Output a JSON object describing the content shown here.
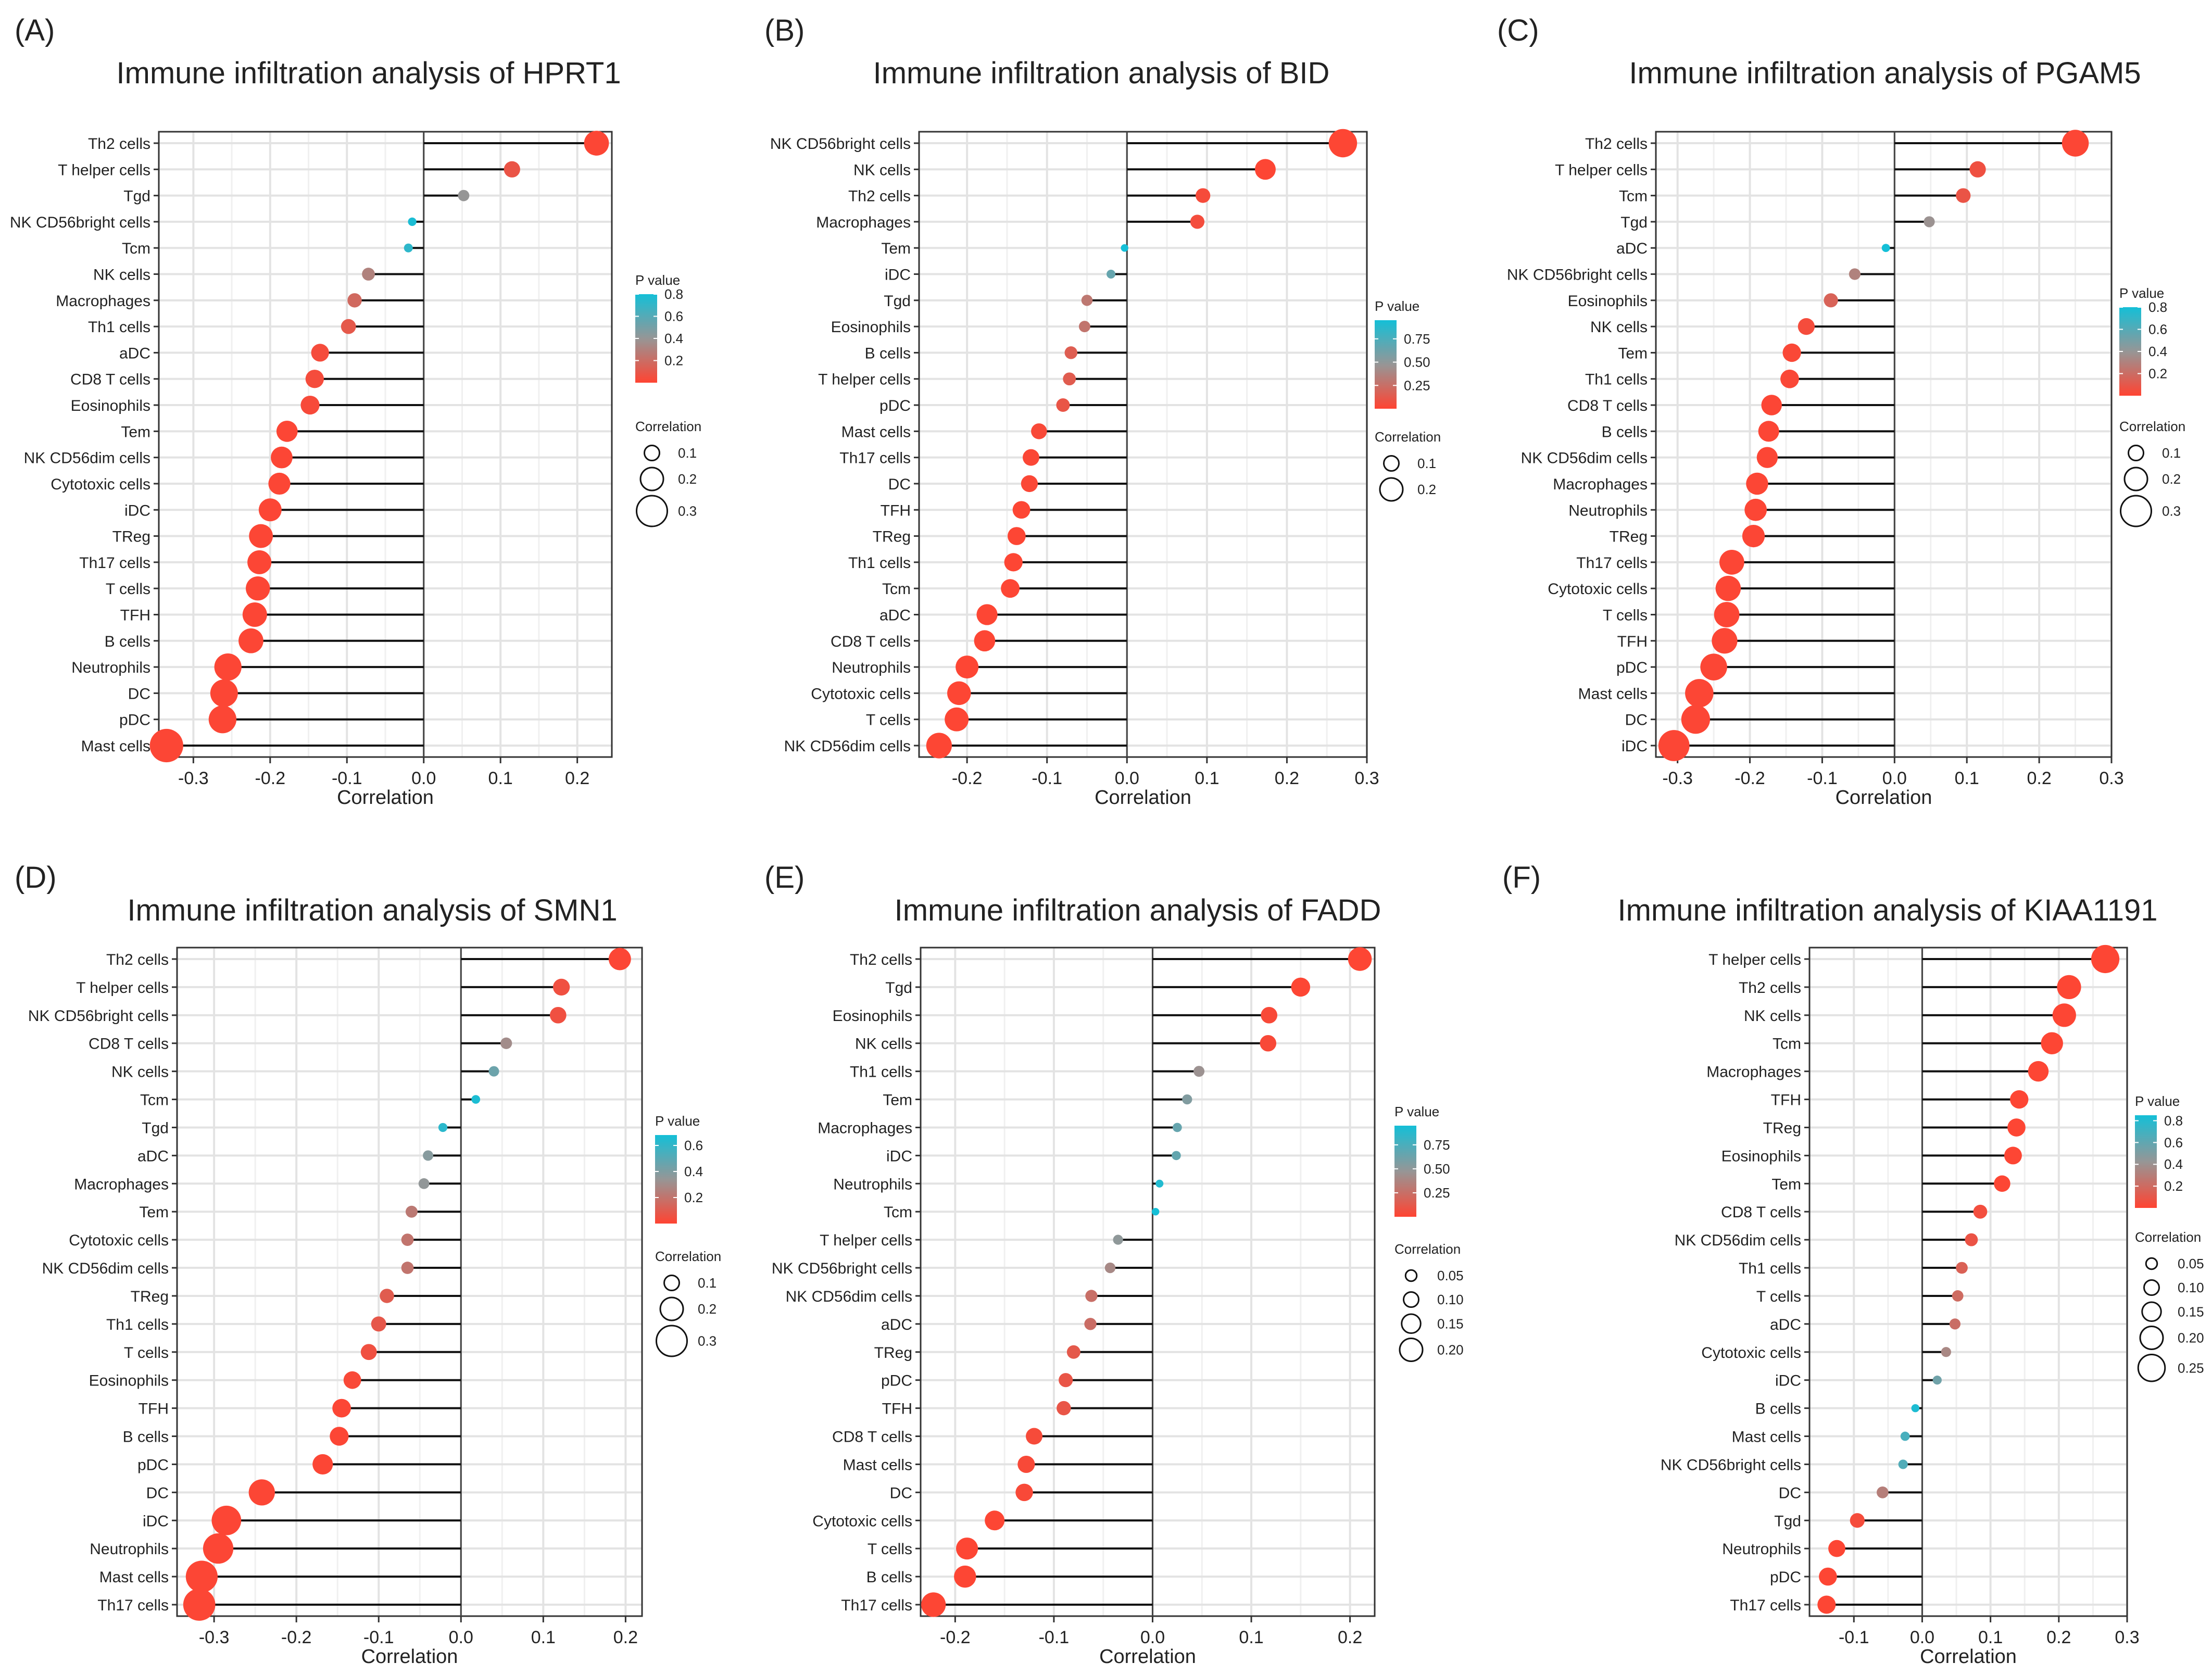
{
  "figure": {
    "description": "Six lollipop charts of immune infiltration correlation"
  },
  "chart_data": [
    {
      "type": "lollipop",
      "panel_label": "(A)",
      "title": "Immune infiltration analysis of HPRT1",
      "xlabel": "Correlation",
      "xlim": [
        -0.345,
        0.245
      ],
      "xticks": [
        -0.3,
        -0.2,
        -0.1,
        0.0,
        0.1,
        0.2
      ],
      "xtick_labels": [
        "-0.3",
        "-0.2",
        "-0.1",
        "0.0",
        "0.1",
        "0.2"
      ],
      "categories": [
        "Th2 cells",
        "T helper cells",
        "Tgd",
        "NK CD56bright cells",
        "Tcm",
        "NK cells",
        "Macrophages",
        "Th1 cells",
        "aDC",
        "CD8 T cells",
        "Eosinophils",
        "Tem",
        "NK CD56dim cells",
        "Cytotoxic cells",
        "iDC",
        "TReg",
        "Th17 cells",
        "T cells",
        "TFH",
        "B cells",
        "Neutrophils",
        "DC",
        "pDC",
        "Mast cells"
      ],
      "correlation": [
        0.225,
        0.115,
        0.052,
        -0.015,
        -0.02,
        -0.072,
        -0.09,
        -0.098,
        -0.135,
        -0.142,
        -0.148,
        -0.178,
        -0.185,
        -0.188,
        -0.2,
        -0.212,
        -0.214,
        -0.216,
        -0.22,
        -0.225,
        -0.255,
        -0.26,
        -0.262,
        -0.335
      ],
      "p_value": [
        0.01,
        0.08,
        0.4,
        0.78,
        0.72,
        0.3,
        0.18,
        0.1,
        0.04,
        0.04,
        0.03,
        0.01,
        0.01,
        0.01,
        0.01,
        0.01,
        0.01,
        0.01,
        0.01,
        0.01,
        0.01,
        0.01,
        0.01,
        0.01
      ],
      "p_legend": {
        "title": "P value",
        "max": 0.8,
        "ticks": [
          0.8,
          0.6,
          0.4,
          0.2
        ],
        "tick_labels": [
          "0.8",
          "0.6",
          "0.4",
          "0.2"
        ]
      },
      "size_legend": {
        "title": "Correlation",
        "values": [
          0.1,
          0.2,
          0.3
        ],
        "labels": [
          "0.1",
          "0.2",
          "0.3"
        ]
      }
    },
    {
      "type": "lollipop",
      "panel_label": "(B)",
      "title": "Immune infiltration analysis of BID",
      "xlabel": "Correlation",
      "xlim": [
        -0.26,
        0.3
      ],
      "xticks": [
        -0.2,
        -0.1,
        0.0,
        0.1,
        0.2,
        0.3
      ],
      "xtick_labels": [
        "-0.2",
        "-0.1",
        "0.0",
        "0.1",
        "0.2",
        "0.3"
      ],
      "categories": [
        "NK CD56bright cells",
        "NK cells",
        "Th2 cells",
        "Macrophages",
        "Tem",
        "iDC",
        "Tgd",
        "Eosinophils",
        "B cells",
        "T helper cells",
        "pDC",
        "Mast cells",
        "Th17 cells",
        "DC",
        "TFH",
        "TReg",
        "Th1 cells",
        "Tcm",
        "aDC",
        "CD8 T cells",
        "Neutrophils",
        "Cytotoxic cells",
        "T cells",
        "NK CD56dim cells"
      ],
      "correlation": [
        0.27,
        0.173,
        0.095,
        0.088,
        -0.003,
        -0.02,
        -0.05,
        -0.053,
        -0.07,
        -0.072,
        -0.08,
        -0.11,
        -0.12,
        -0.122,
        -0.132,
        -0.138,
        -0.142,
        -0.146,
        -0.175,
        -0.178,
        -0.2,
        -0.21,
        -0.213,
        -0.235
      ],
      "p_value": [
        0.01,
        0.01,
        0.04,
        0.05,
        0.95,
        0.65,
        0.3,
        0.28,
        0.15,
        0.14,
        0.1,
        0.03,
        0.02,
        0.02,
        0.01,
        0.01,
        0.01,
        0.01,
        0.01,
        0.01,
        0.01,
        0.01,
        0.01,
        0.01
      ],
      "p_legend": {
        "title": "P value",
        "max": 0.95,
        "ticks": [
          0.75,
          0.5,
          0.25
        ],
        "tick_labels": [
          "0.75",
          "0.50",
          "0.25"
        ]
      },
      "size_legend": {
        "title": "Correlation",
        "values": [
          0.1,
          0.2
        ],
        "labels": [
          "0.1",
          "0.2"
        ]
      }
    },
    {
      "type": "lollipop",
      "panel_label": "(C)",
      "title": "Immune infiltration analysis of PGAM5",
      "xlabel": "Correlation",
      "xlim": [
        -0.33,
        0.3
      ],
      "xticks": [
        -0.3,
        -0.2,
        -0.1,
        0.0,
        0.1,
        0.2,
        0.3
      ],
      "xtick_labels": [
        "-0.3",
        "-0.2",
        "-0.1",
        "0.0",
        "0.1",
        "0.2",
        "0.3"
      ],
      "categories": [
        "Th2 cells",
        "T helper cells",
        "Tcm",
        "Tgd",
        "aDC",
        "NK CD56bright cells",
        "Eosinophils",
        "NK cells",
        "Tem",
        "Th1 cells",
        "CD8 T cells",
        "B cells",
        "NK CD56dim cells",
        "Macrophages",
        "Neutrophils",
        "TReg",
        "Th17 cells",
        "Cytotoxic cells",
        "T cells",
        "TFH",
        "pDC",
        "Mast cells",
        "DC",
        "iDC"
      ],
      "correlation": [
        0.25,
        0.115,
        0.095,
        0.048,
        -0.012,
        -0.055,
        -0.088,
        -0.122,
        -0.142,
        -0.145,
        -0.17,
        -0.174,
        -0.176,
        -0.19,
        -0.192,
        -0.195,
        -0.225,
        -0.23,
        -0.232,
        -0.235,
        -0.25,
        -0.27,
        -0.275,
        -0.305
      ],
      "p_value": [
        0.01,
        0.06,
        0.08,
        0.38,
        0.82,
        0.3,
        0.15,
        0.04,
        0.02,
        0.02,
        0.01,
        0.01,
        0.01,
        0.01,
        0.01,
        0.01,
        0.01,
        0.01,
        0.01,
        0.01,
        0.01,
        0.01,
        0.01,
        0.01
      ],
      "p_legend": {
        "title": "P value",
        "max": 0.8,
        "ticks": [
          0.8,
          0.6,
          0.4,
          0.2
        ],
        "tick_labels": [
          "0.8",
          "0.6",
          "0.4",
          "0.2"
        ]
      },
      "size_legend": {
        "title": "Correlation",
        "values": [
          0.1,
          0.2,
          0.3
        ],
        "labels": [
          "0.1",
          "0.2",
          "0.3"
        ]
      }
    },
    {
      "type": "lollipop",
      "panel_label": "(D)",
      "title": "Immune infiltration analysis of SMN1",
      "xlabel": "Correlation",
      "xlim": [
        -0.345,
        0.22
      ],
      "xticks": [
        -0.3,
        -0.2,
        -0.1,
        0.0,
        0.1,
        0.2
      ],
      "xtick_labels": [
        "-0.3",
        "-0.2",
        "-0.1",
        "0.0",
        "0.1",
        "0.2"
      ],
      "categories": [
        "Th2 cells",
        "T helper cells",
        "NK CD56bright cells",
        "CD8 T cells",
        "NK cells",
        "Tcm",
        "Tgd",
        "aDC",
        "Macrophages",
        "Tem",
        "Cytotoxic cells",
        "NK CD56dim cells",
        "TReg",
        "Th1 cells",
        "T cells",
        "Eosinophils",
        "TFH",
        "B cells",
        "pDC",
        "DC",
        "iDC",
        "Neutrophils",
        "Mast cells",
        "Th17 cells"
      ],
      "correlation": [
        0.193,
        0.122,
        0.118,
        0.055,
        0.04,
        0.018,
        -0.022,
        -0.04,
        -0.045,
        -0.06,
        -0.065,
        -0.065,
        -0.09,
        -0.1,
        -0.112,
        -0.132,
        -0.145,
        -0.148,
        -0.168,
        -0.242,
        -0.285,
        -0.295,
        -0.315,
        -0.318
      ],
      "p_value": [
        0.01,
        0.05,
        0.05,
        0.3,
        0.45,
        0.66,
        0.62,
        0.38,
        0.35,
        0.22,
        0.2,
        0.2,
        0.1,
        0.08,
        0.05,
        0.02,
        0.01,
        0.01,
        0.01,
        0.01,
        0.01,
        0.01,
        0.01,
        0.01
      ],
      "p_legend": {
        "title": "P value",
        "max": 0.68,
        "ticks": [
          0.6,
          0.4,
          0.2
        ],
        "tick_labels": [
          "0.6",
          "0.4",
          "0.2"
        ]
      },
      "size_legend": {
        "title": "Correlation",
        "values": [
          0.1,
          0.2,
          0.3
        ],
        "labels": [
          "0.1",
          "0.2",
          "0.3"
        ]
      }
    },
    {
      "type": "lollipop",
      "panel_label": "(E)",
      "title": "Immune infiltration analysis of FADD",
      "xlabel": "Correlation",
      "xlim": [
        -0.235,
        0.225
      ],
      "xticks": [
        -0.2,
        -0.1,
        0.0,
        0.1,
        0.2
      ],
      "xtick_labels": [
        "-0.2",
        "-0.1",
        "0.0",
        "0.1",
        "0.2"
      ],
      "categories": [
        "Th2 cells",
        "Tgd",
        "Eosinophils",
        "NK cells",
        "Th1 cells",
        "Tem",
        "Macrophages",
        "iDC",
        "Neutrophils",
        "Tcm",
        "T helper cells",
        "NK CD56bright cells",
        "NK CD56dim cells",
        "aDC",
        "TReg",
        "pDC",
        "TFH",
        "CD8 T cells",
        "Mast cells",
        "DC",
        "Cytotoxic cells",
        "T cells",
        "B cells",
        "Th17 cells"
      ],
      "correlation": [
        0.21,
        0.15,
        0.118,
        0.117,
        0.047,
        0.035,
        0.025,
        0.024,
        0.007,
        0.003,
        -0.035,
        -0.043,
        -0.062,
        -0.063,
        -0.08,
        -0.088,
        -0.09,
        -0.12,
        -0.128,
        -0.13,
        -0.16,
        -0.188,
        -0.19,
        -0.222
      ],
      "p_value": [
        0.01,
        0.01,
        0.03,
        0.03,
        0.45,
        0.55,
        0.65,
        0.66,
        0.9,
        0.95,
        0.5,
        0.4,
        0.25,
        0.24,
        0.12,
        0.1,
        0.1,
        0.04,
        0.03,
        0.03,
        0.01,
        0.01,
        0.01,
        0.01
      ],
      "p_legend": {
        "title": "P value",
        "max": 0.95,
        "ticks": [
          0.75,
          0.5,
          0.25
        ],
        "tick_labels": [
          "0.75",
          "0.50",
          "0.25"
        ]
      },
      "size_legend": {
        "title": "Correlation",
        "values": [
          0.05,
          0.1,
          0.15,
          0.2
        ],
        "labels": [
          "0.05",
          "0.10",
          "0.15",
          "0.20"
        ]
      }
    },
    {
      "type": "lollipop",
      "panel_label": "(F)",
      "title": "Immune infiltration analysis of KIAA1191",
      "xlabel": "Correlation",
      "xlim": [
        -0.165,
        0.3
      ],
      "xticks": [
        -0.1,
        0.0,
        0.1,
        0.2,
        0.3
      ],
      "xtick_labels": [
        "-0.1",
        "0.0",
        "0.1",
        "0.2",
        "0.3"
      ],
      "categories": [
        "T helper cells",
        "Th2 cells",
        "NK cells",
        "Tcm",
        "Macrophages",
        "TFH",
        "TReg",
        "Eosinophils",
        "Tem",
        "CD8 T cells",
        "NK CD56dim cells",
        "Th1 cells",
        "T cells",
        "aDC",
        "Cytotoxic cells",
        "iDC",
        "B cells",
        "Mast cells",
        "NK CD56bright cells",
        "DC",
        "Tgd",
        "Neutrophils",
        "pDC",
        "Th17 cells"
      ],
      "correlation": [
        0.268,
        0.215,
        0.208,
        0.19,
        0.17,
        0.142,
        0.138,
        0.133,
        0.117,
        0.085,
        0.072,
        0.058,
        0.052,
        0.048,
        0.035,
        0.022,
        -0.01,
        -0.025,
        -0.028,
        -0.058,
        -0.095,
        -0.125,
        -0.138,
        -0.14
      ],
      "p_value": [
        0.01,
        0.01,
        0.01,
        0.01,
        0.01,
        0.01,
        0.01,
        0.01,
        0.01,
        0.05,
        0.08,
        0.15,
        0.2,
        0.22,
        0.35,
        0.55,
        0.82,
        0.68,
        0.65,
        0.3,
        0.04,
        0.01,
        0.01,
        0.01
      ],
      "p_legend": {
        "title": "P value",
        "max": 0.85,
        "ticks": [
          0.8,
          0.6,
          0.4,
          0.2
        ],
        "tick_labels": [
          "0.8",
          "0.6",
          "0.4",
          "0.2"
        ]
      },
      "size_legend": {
        "title": "Correlation",
        "values": [
          0.05,
          0.1,
          0.15,
          0.2,
          0.25
        ],
        "labels": [
          "0.05",
          "0.10",
          "0.15",
          "0.20",
          "0.25"
        ]
      }
    }
  ]
}
